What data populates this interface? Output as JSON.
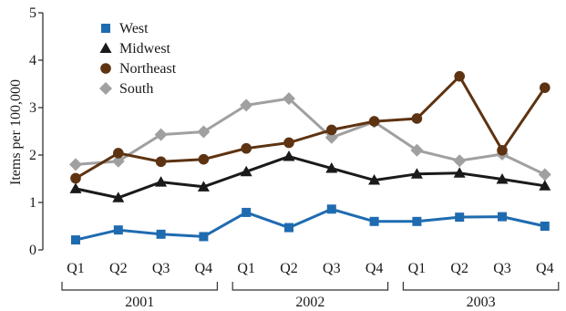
{
  "chart_data": {
    "type": "line",
    "categories": [
      "Q1",
      "Q2",
      "Q3",
      "Q4",
      "Q1",
      "Q2",
      "Q3",
      "Q4",
      "Q1",
      "Q2",
      "Q3",
      "Q4"
    ],
    "groups": [
      {
        "label": "2001",
        "first": 0,
        "last": 3
      },
      {
        "label": "2002",
        "first": 4,
        "last": 7
      },
      {
        "label": "2003",
        "first": 8,
        "last": 11
      }
    ],
    "ylabel": "Items per 100,000",
    "ylim": [
      0,
      5
    ],
    "yticks": [
      0,
      1,
      2,
      3,
      4,
      5
    ],
    "grid": false,
    "legend": "top-left",
    "series": [
      {
        "name": "West",
        "color": "#1f6bb0",
        "marker": "square",
        "values": [
          0.21,
          0.42,
          0.33,
          0.28,
          0.79,
          0.47,
          0.86,
          0.6,
          0.6,
          0.69,
          0.7,
          0.5
        ]
      },
      {
        "name": "Midwest",
        "color": "#1a1a1a",
        "marker": "triangle",
        "values": [
          1.29,
          1.1,
          1.43,
          1.33,
          1.65,
          1.97,
          1.72,
          1.47,
          1.6,
          1.62,
          1.49,
          1.35
        ]
      },
      {
        "name": "Northeast",
        "color": "#5e3311",
        "marker": "circle",
        "values": [
          1.51,
          2.04,
          1.86,
          1.91,
          2.14,
          2.26,
          2.53,
          2.71,
          2.77,
          3.66,
          2.1,
          3.42
        ]
      },
      {
        "name": "South",
        "color": "#a0a0a0",
        "marker": "diamond",
        "values": [
          1.8,
          1.87,
          2.43,
          2.49,
          3.05,
          3.19,
          2.37,
          2.7,
          2.1,
          1.88,
          2.02,
          1.59
        ]
      }
    ]
  }
}
